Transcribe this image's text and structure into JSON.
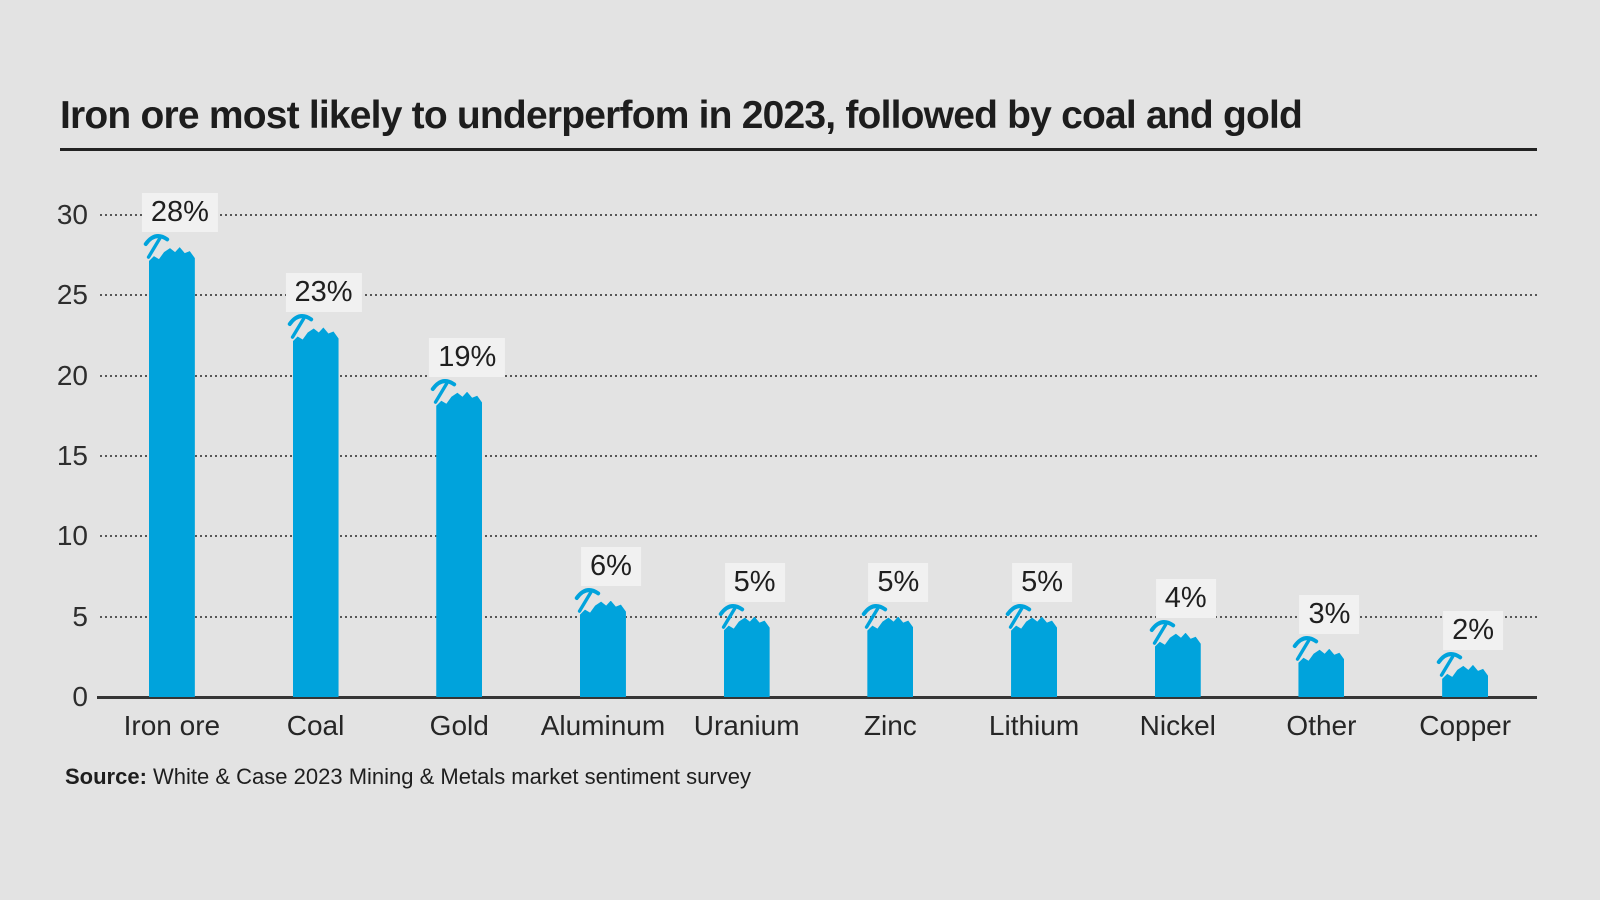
{
  "page": {
    "background": "#e3e3e3"
  },
  "chart_data": {
    "type": "bar",
    "title": "Iron ore most likely to underperfom in 2023, followed by coal and gold",
    "categories": [
      "Iron ore",
      "Coal",
      "Gold",
      "Aluminum",
      "Uranium",
      "Zinc",
      "Lithium",
      "Nickel",
      "Other",
      "Copper"
    ],
    "values": [
      28,
      23,
      19,
      6,
      5,
      5,
      5,
      4,
      3,
      2
    ],
    "value_labels": [
      "28%",
      "23%",
      "19%",
      "6%",
      "5%",
      "5%",
      "5%",
      "4%",
      "3%",
      "2%"
    ],
    "xlabel": "",
    "ylabel": "",
    "ylim": [
      0,
      30
    ],
    "yticks": [
      0,
      5,
      10,
      15,
      20,
      25,
      30
    ],
    "grid": "horizontal dotted lines, solid baseline at 0",
    "legend": "none",
    "bar_color": "#00a3dc",
    "value_label_background": "#f1f1f1",
    "bar_icon": "pickaxe-icon"
  },
  "footer": {
    "source_label": "Source:",
    "source_text": " White & Case 2023 Mining & Metals market sentiment survey"
  }
}
